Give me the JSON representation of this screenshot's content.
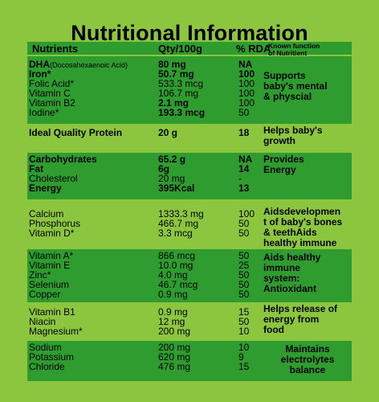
{
  "title": "Nutritional Information",
  "header": {
    "nutrients": "Nutrients",
    "qty": "Qty/100g",
    "rda": "% RDA",
    "function": "Known function of Nutritient"
  },
  "groups": [
    {
      "rows": [
        {
          "name": "DHA",
          "name_note": "(Docosahexaenoic Acid)",
          "qty": "80 mg",
          "rda": "NA",
          "bold": true
        },
        {
          "name": "Iron*",
          "qty": "50.7 mg",
          "rda": "100",
          "bold": true
        },
        {
          "name": "Folic Acid*",
          "qty": "533.3 mcg",
          "rda": "100"
        },
        {
          "name": "Vitamin C",
          "qty": "106.7 mg",
          "rda": "100"
        },
        {
          "name": "Vitamin B2",
          "qty": "2.1 mg",
          "rda": "100",
          "bold_qty": true
        },
        {
          "name": "Iodine*",
          "qty": "193.3 mcg",
          "rda": "50",
          "bold_qty": true
        }
      ],
      "function": [
        "Supports",
        "baby's mental",
        "& physcial"
      ]
    },
    {
      "rows": [
        {
          "name": "Ideal Quality Protein",
          "qty": "20 g",
          "rda": "18",
          "bold": true
        }
      ],
      "function": [
        "Helps baby's",
        "growth"
      ]
    },
    {
      "rows": [
        {
          "name": "Carbohydrates",
          "qty": "65.2 g",
          "rda": "NA",
          "bold": true
        },
        {
          "name": "Fat",
          "qty": "6g",
          "rda": "14",
          "bold": true
        },
        {
          "name": "Cholesterol",
          "qty": "20 mg",
          "rda": "-"
        },
        {
          "name": "Energy",
          "qty": "395Kcal",
          "rda": "13",
          "bold": true
        }
      ],
      "function": [
        "Provides",
        "Energy"
      ]
    },
    {
      "rows": [
        {
          "name": "Calcium",
          "qty": "1333.3 mg",
          "rda": "100"
        },
        {
          "name": "Phosphorus",
          "qty": "466.7 mg",
          "rda": "50"
        },
        {
          "name": "Vitamin D*",
          "qty": "3.3 mcg",
          "rda": "50"
        }
      ],
      "function": [
        "Aidsdevelopmen",
        "t of baby's bones",
        "& teethAids",
        "healthy immune"
      ]
    },
    {
      "rows": [
        {
          "name": "Vitamin A*",
          "qty": "866 mcg",
          "rda": "50"
        },
        {
          "name": "Vitamin E",
          "qty": "10.0 mg",
          "rda": "25"
        },
        {
          "name": "Zinc*",
          "qty": "4.0 mg",
          "rda": "50"
        },
        {
          "name": "Selenium",
          "qty": "46.7 mcg",
          "rda": "50"
        },
        {
          "name": "Copper",
          "qty": "0.9 mg",
          "rda": "50"
        }
      ],
      "function": [
        "Aids healthy",
        "immune",
        "system:",
        "Antioxidant"
      ]
    },
    {
      "rows": [
        {
          "name": "Vitamin B1",
          "qty": "0.9 mg",
          "rda": "15"
        },
        {
          "name": "Niacin",
          "qty": "12 mg",
          "rda": "50"
        },
        {
          "name": "Magnesium*",
          "qty": "200 mg",
          "rda": "10"
        }
      ],
      "function": [
        "Helps release of",
        "energy from",
        "food"
      ]
    },
    {
      "rows": [
        {
          "name": "Sodium",
          "qty": "200 mg",
          "rda": "10"
        },
        {
          "name": "Potassium",
          "qty": "620 mg",
          "rda": "9"
        },
        {
          "name": "Chloride",
          "qty": "476 mg",
          "rda": "15"
        }
      ],
      "function": [
        "Maintains",
        "electrolytes",
        "balance"
      ]
    }
  ]
}
